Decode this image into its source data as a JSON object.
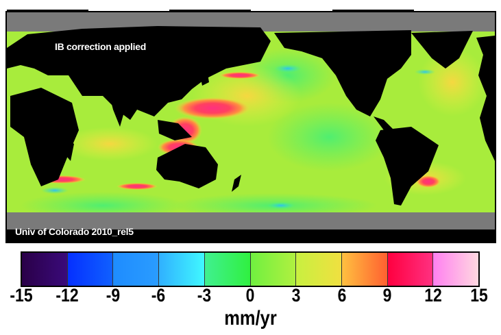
{
  "map": {
    "annotation_top": "IB correction applied",
    "annotation_bottom": "Univ of Colorado 2010_rel5"
  },
  "colorbar": {
    "ticks": [
      "-15",
      "-12",
      "-9",
      "-6",
      "-3",
      "0",
      "3",
      "6",
      "9",
      "12",
      "15"
    ],
    "unit": "mm/yr",
    "range": [
      -15,
      15
    ],
    "colors": [
      [
        "#2a0048",
        "#3a0a7a"
      ],
      [
        "#0530ff",
        "#1060ff"
      ],
      [
        "#1e8cff",
        "#2a9cff"
      ],
      [
        "#30b0ff",
        "#40f8ff"
      ],
      [
        "#40f090",
        "#30f040"
      ],
      [
        "#70f040",
        "#b0f040"
      ],
      [
        "#c8f040",
        "#f0e040"
      ],
      [
        "#ffc040",
        "#ff6030"
      ],
      [
        "#ff0040",
        "#ff3080"
      ],
      [
        "#ff80f0",
        "#ffd8e0"
      ]
    ]
  }
}
